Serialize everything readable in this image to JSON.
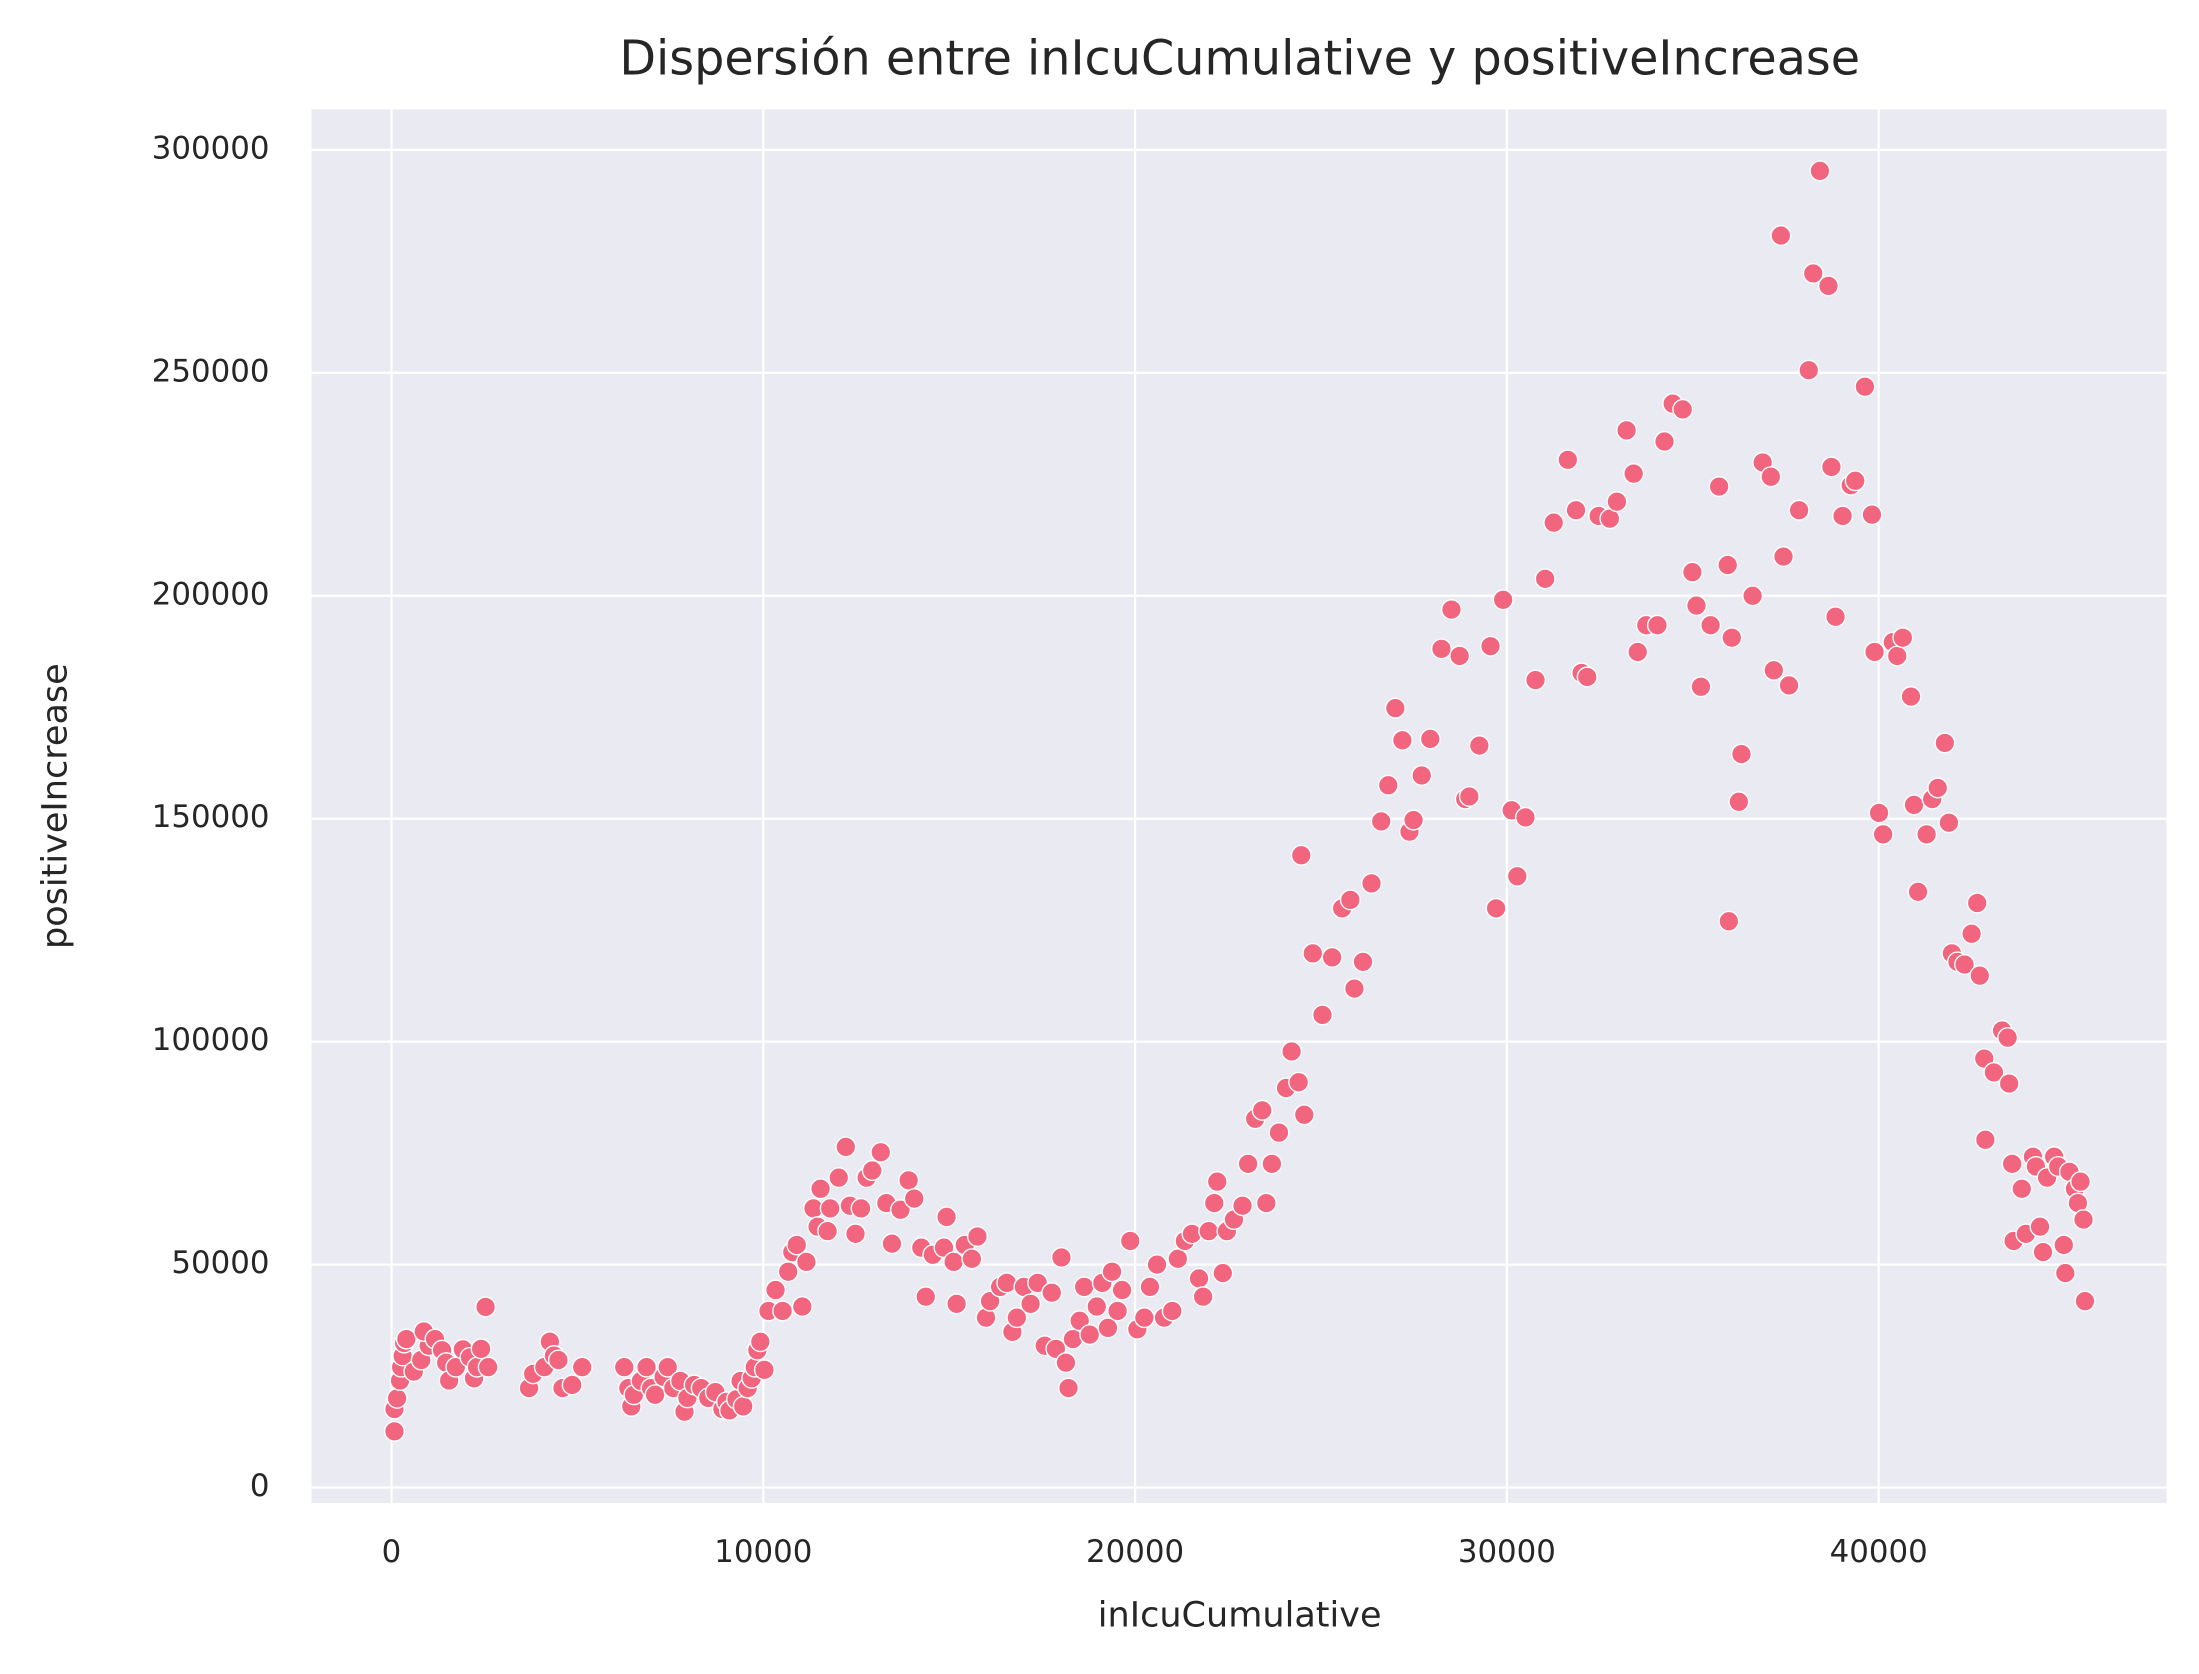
{
  "chart_data": {
    "type": "scatter",
    "title": "Dispersión entre inIcuCumulative y positiveIncrease",
    "xlabel": "inIcuCumulative",
    "ylabel": "positiveIncrease",
    "color": "#f2657f",
    "grid": true,
    "background": "#eaeaf2",
    "xlim": [
      -2150,
      47740
    ],
    "ylim": [
      -3460,
      309100
    ],
    "xticks": [
      0,
      10000,
      20000,
      30000,
      40000
    ],
    "yticks": [
      0,
      50000,
      100000,
      150000,
      200000,
      250000,
      300000
    ],
    "x": [
      80,
      80,
      150,
      230,
      260,
      300,
      340,
      400,
      600,
      800,
      1000,
      870,
      1170,
      1360,
      1470,
      1550,
      1730,
      1920,
      2110,
      2220,
      2300,
      2410,
      2530,
      2600,
      3700,
      3810,
      4110,
      4260,
      4370,
      4490,
      4600,
      4860,
      5130,
      6260,
      6370,
      6450,
      6520,
      6710,
      6860,
      6980,
      7090,
      7320,
      7430,
      7580,
      7770,
      7880,
      7960,
      8140,
      8330,
      8520,
      8710,
      8900,
      9010,
      9090,
      9280,
      9390,
      9460,
      9580,
      9690,
      9770,
      9840,
      9920,
      10030,
      10140,
      10330,
      10520,
      10670,
      10780,
      10900,
      11050,
      11160,
      11350,
      11460,
      11540,
      11730,
      11800,
      12030,
      12220,
      12330,
      12480,
      12630,
      12780,
      12930,
      13160,
      13310,
      13460,
      13690,
      13910,
      14060,
      14250,
      14370,
      14560,
      14860,
      14930,
      15120,
      15200,
      15420,
      15610,
      15760,
      15990,
      16100,
      16370,
      16550,
      16700,
      16820,
      17010,
      17190,
      17380,
      17570,
      17760,
      17870,
      18020,
      18140,
      18210,
      18330,
      18510,
      18630,
      18780,
      18970,
      19120,
      19270,
      19380,
      19530,
      19650,
      19870,
      20060,
      20250,
      20400,
      20590,
      20780,
      21000,
      21150,
      21340,
      21530,
      21720,
      21830,
      21980,
      22130,
      22210,
      22360,
      22470,
      22660,
      22890,
      23040,
      23230,
      23420,
      23530,
      23680,
      23870,
      24060,
      24210,
      24400,
      24550,
      24470,
      24780,
      25040,
      25300,
      25570,
      25790,
      25900,
      26130,
      26360,
      26620,
      26810,
      27000,
      27190,
      27380,
      27490,
      27710,
      27940,
      28240,
      28510,
      28730,
      28880,
      28990,
      29260,
      29560,
      29710,
      29900,
      30130,
      30280,
      30500,
      30770,
      31030,
      31260,
      31640,
      31860,
      32010,
      32160,
      32470,
      32770,
      32960,
      33220,
      33410,
      33520,
      33750,
      34050,
      34240,
      34460,
      34730,
      34990,
      35100,
      35220,
      35480,
      35710,
      35940,
      36050,
      35970,
      36240,
      36310,
      36610,
      36880,
      37100,
      37180,
      37370,
      37440,
      37590,
      37860,
      38120,
      38240,
      38420,
      38650,
      38730,
      38840,
      39030,
      39250,
      39370,
      39630,
      39820,
      39890,
      40010,
      40120,
      40380,
      40500,
      40650,
      40870,
      40950,
      41060,
      41290,
      41440,
      41590,
      41780,
      41890,
      41970,
      42120,
      42310,
      42500,
      42650,
      42720,
      42840,
      42870,
      43100,
      43320,
      43470,
      43510,
      43590,
      43630,
      43850,
      43960,
      44150,
      44230,
      44340,
      44420,
      44530,
      44720,
      44830,
      44980,
      45020,
      45130,
      45280,
      45360,
      45430,
      45510,
      45550
    ],
    "values": [
      12600,
      17600,
      20000,
      24000,
      27000,
      29500,
      32400,
      33300,
      26000,
      28600,
      31800,
      35000,
      33300,
      30800,
      28000,
      24000,
      27000,
      31000,
      29200,
      24500,
      27000,
      31100,
      40500,
      27000,
      22300,
      25500,
      27000,
      32700,
      29600,
      28600,
      22300,
      23000,
      27000,
      27000,
      22300,
      18200,
      20800,
      23900,
      27000,
      22300,
      20800,
      24800,
      27000,
      22300,
      23900,
      17000,
      20100,
      23000,
      22300,
      20100,
      21400,
      17600,
      19200,
      17300,
      19800,
      23900,
      18200,
      22300,
      24500,
      27000,
      30800,
      32700,
      26400,
      39600,
      44300,
      39600,
      48400,
      52800,
      54400,
      40600,
      50600,
      62600,
      58500,
      67000,
      57500,
      62600,
      69500,
      76400,
      63200,
      56900,
      62600,
      69500,
      71100,
      75200,
      63800,
      54700,
      62300,
      68900,
      64800,
      53800,
      42800,
      52200,
      53800,
      60700,
      50600,
      41200,
      54400,
      51300,
      56300,
      38100,
      41800,
      45000,
      45900,
      34900,
      38100,
      45000,
      41200,
      45900,
      31800,
      43700,
      31100,
      51600,
      28000,
      22300,
      33300,
      37400,
      45000,
      34300,
      40600,
      45900,
      35800,
      48400,
      39600,
      44300,
      55300,
      35500,
      38100,
      45000,
      50000,
      38100,
      39600,
      51300,
      55300,
      56900,
      46900,
      42800,
      57500,
      63800,
      68600,
      48100,
      57500,
      60100,
      63200,
      72600,
      82700,
      84600,
      63800,
      72600,
      79600,
      89600,
      97800,
      90900,
      83600,
      141800,
      119800,
      106000,
      118900,
      129900,
      131800,
      111900,
      117900,
      135500,
      149400,
      157500,
      174800,
      167600,
      147100,
      149700,
      159700,
      167900,
      188100,
      196900,
      186500,
      154400,
      155000,
      166400,
      188700,
      129900,
      199100,
      151900,
      137100,
      150300,
      181100,
      203800,
      216400,
      230500,
      219200,
      182700,
      181800,
      217900,
      217300,
      221100,
      237100,
      227400,
      187400,
      193400,
      193400,
      234600,
      243100,
      241800,
      205300,
      197800,
      179600,
      193400,
      224500,
      206900,
      190600,
      127000,
      153800,
      164500,
      200000,
      229900,
      226700,
      183300,
      280800,
      208800,
      179900,
      219200,
      250600,
      272300,
      295300,
      269500,
      228900,
      195300,
      217900,
      224800,
      225800,
      246900,
      218200,
      187400,
      151300,
      146500,
      189600,
      186500,
      190600,
      177400,
      153100,
      133600,
      146500,
      154400,
      156900,
      167000,
      149100,
      119800,
      117900,
      117300,
      124200,
      131100,
      114800,
      96200,
      78000,
      93100,
      102500,
      100900,
      90600,
      72600,
      55300,
      67000,
      56900,
      74200,
      72000,
      58500,
      52800,
      69500,
      74200,
      72000,
      54400,
      48100,
      70800,
      67000,
      63800,
      68600,
      60100,
      41800
    ]
  }
}
